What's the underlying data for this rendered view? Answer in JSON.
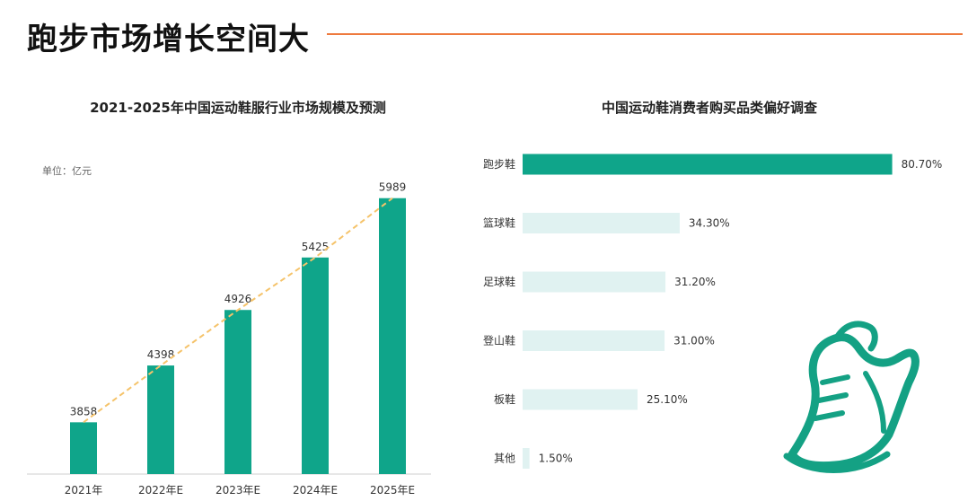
{
  "page": {
    "headline": "跑步市场增长空间大"
  },
  "colors": {
    "accent_orange": "#ee7a3e",
    "bar_teal": "#0fa58a",
    "bar_light": "#e0f2f1",
    "trend_line": "#f5c36a",
    "shoe_outline": "#14a184"
  },
  "shoe_icon": "running-shoe-icon",
  "chart_data": [
    {
      "type": "bar",
      "title": "2021-2025年中国运动鞋服行业市场规模及预测",
      "unit_label": "单位：亿元",
      "categories": [
        "2021年",
        "2022年E",
        "2023年E",
        "2024年E",
        "2025年E"
      ],
      "values": [
        3858,
        4398,
        4926,
        5425,
        5989
      ],
      "value_labels": [
        "3858",
        "4398",
        "4926",
        "5425",
        "5989"
      ],
      "trend_line": true,
      "ylim": [
        3400,
        6200
      ],
      "grid": false
    },
    {
      "type": "bar",
      "orientation": "horizontal",
      "title": "中国运动鞋消费者购买品类偏好调查",
      "categories": [
        "跑步鞋",
        "篮球鞋",
        "足球鞋",
        "登山鞋",
        "板鞋",
        "其他"
      ],
      "values": [
        80.7,
        34.3,
        31.2,
        31.0,
        25.1,
        1.5
      ],
      "value_labels": [
        "80.70%",
        "34.30%",
        "31.20%",
        "31.00%",
        "25.10%",
        "1.50%"
      ],
      "xlim": [
        0,
        100
      ],
      "grid": false
    }
  ]
}
